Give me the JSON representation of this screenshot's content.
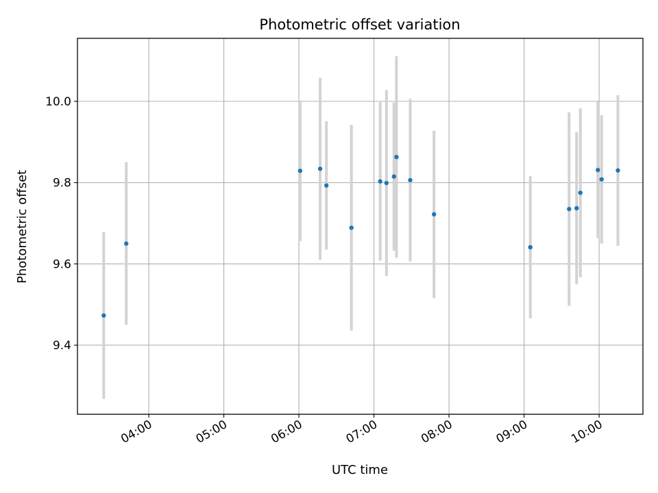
{
  "chart_data": {
    "type": "scatter",
    "title": "Photometric offset variation",
    "xlabel": "UTC time",
    "ylabel": "Photometric offset",
    "x_axis_type": "time",
    "xlim": [
      "03:03",
      "10:35"
    ],
    "ylim": [
      9.23,
      10.155
    ],
    "x_ticks": [
      "04:00",
      "05:00",
      "06:00",
      "07:00",
      "08:00",
      "09:00",
      "10:00"
    ],
    "y_ticks": [
      9.4,
      9.6,
      9.8,
      10.0
    ],
    "y_tick_labels": [
      "9.4",
      "9.6",
      "9.8",
      "10.0"
    ],
    "grid": true,
    "legend": "none",
    "colors": {
      "marker": "#1f77b4",
      "errorbar": "#d3d3d3",
      "grid": "#b0b0b0"
    },
    "series": [
      {
        "points": [
          {
            "x": "03:24",
            "y": 9.473,
            "err": 0.205
          },
          {
            "x": "03:42",
            "y": 9.65,
            "err": 0.2
          },
          {
            "x": "06:01",
            "y": 9.829,
            "err": 0.173
          },
          {
            "x": "06:17",
            "y": 9.834,
            "err": 0.224
          },
          {
            "x": "06:22",
            "y": 9.793,
            "err": 0.158
          },
          {
            "x": "06:42",
            "y": 9.689,
            "err": 0.253
          },
          {
            "x": "07:05",
            "y": 9.803,
            "err": 0.195
          },
          {
            "x": "07:10",
            "y": 9.799,
            "err": 0.229
          },
          {
            "x": "07:16",
            "y": 9.815,
            "err": 0.182
          },
          {
            "x": "07:18",
            "y": 9.863,
            "err": 0.248
          },
          {
            "x": "07:29",
            "y": 9.806,
            "err": 0.2
          },
          {
            "x": "07:48",
            "y": 9.722,
            "err": 0.206
          },
          {
            "x": "09:05",
            "y": 9.641,
            "err": 0.175
          },
          {
            "x": "09:36",
            "y": 9.735,
            "err": 0.238
          },
          {
            "x": "09:42",
            "y": 9.737,
            "err": 0.187
          },
          {
            "x": "09:45",
            "y": 9.775,
            "err": 0.208
          },
          {
            "x": "09:59",
            "y": 9.831,
            "err": 0.168
          },
          {
            "x": "10:02",
            "y": 9.808,
            "err": 0.158
          },
          {
            "x": "10:15",
            "y": 9.83,
            "err": 0.185
          }
        ]
      }
    ]
  }
}
